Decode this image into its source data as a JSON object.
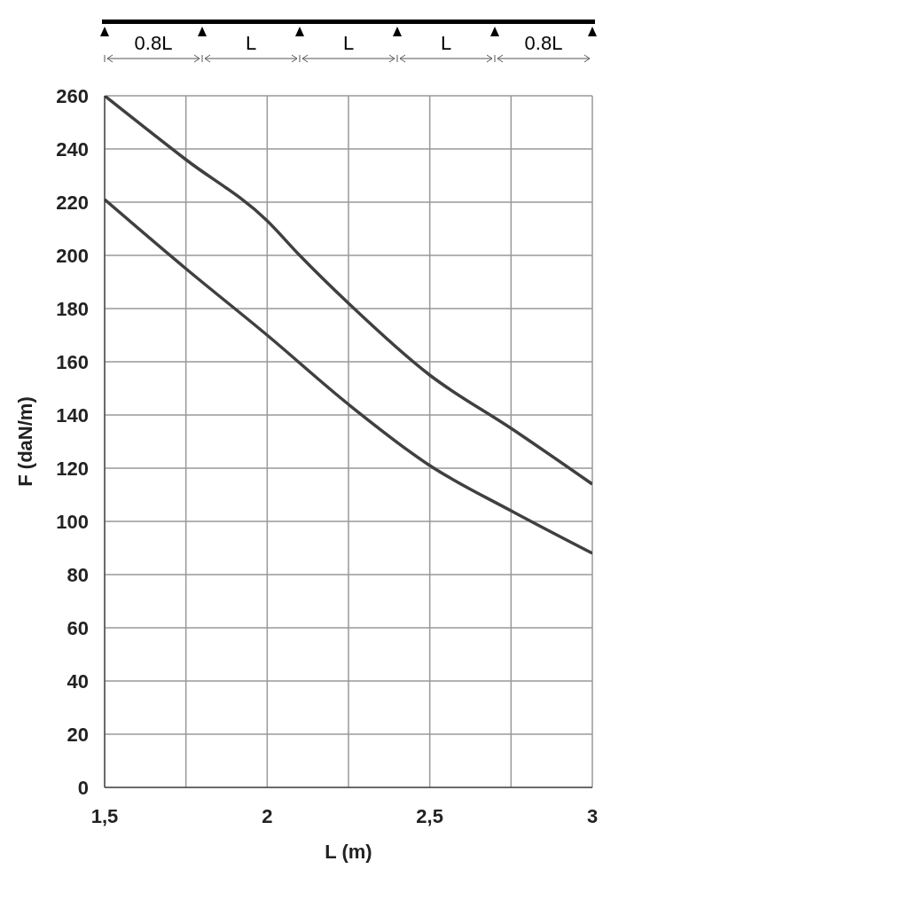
{
  "chart_data": {
    "type": "line",
    "xlabel": "L (m)",
    "ylabel": "F (daN/m)",
    "annotations": [
      "0.8L",
      "L",
      "L",
      "L",
      "0.8L"
    ],
    "series": [
      {
        "color": "#404040",
        "x": [
          1.5,
          1.75,
          2.0,
          2.1,
          2.25,
          2.5,
          2.75,
          3.0
        ],
        "values": [
          260,
          236,
          213,
          200,
          182,
          155,
          135,
          114
        ]
      },
      {
        "color": "#404040",
        "x": [
          1.5,
          1.75,
          2.0,
          2.25,
          2.5,
          2.75,
          3.0
        ],
        "values": [
          221,
          195,
          170,
          144,
          121,
          104,
          88
        ]
      }
    ],
    "xlim": [
      1.5,
      3
    ],
    "xticks": [
      {
        "value": 1.5,
        "label": "1,5"
      },
      {
        "value": 1.75,
        "label": null
      },
      2,
      {
        "value": 2.25,
        "label": null
      },
      {
        "value": 2.5,
        "label": "2,5"
      },
      {
        "value": 2.75,
        "label": null
      },
      3
    ],
    "ylim": [
      0,
      260
    ],
    "yticks": [
      0,
      20,
      40,
      60,
      80,
      100,
      120,
      140,
      160,
      180,
      200,
      220,
      240,
      260
    ],
    "grid": true,
    "marker": "none",
    "line_style": "solid"
  }
}
